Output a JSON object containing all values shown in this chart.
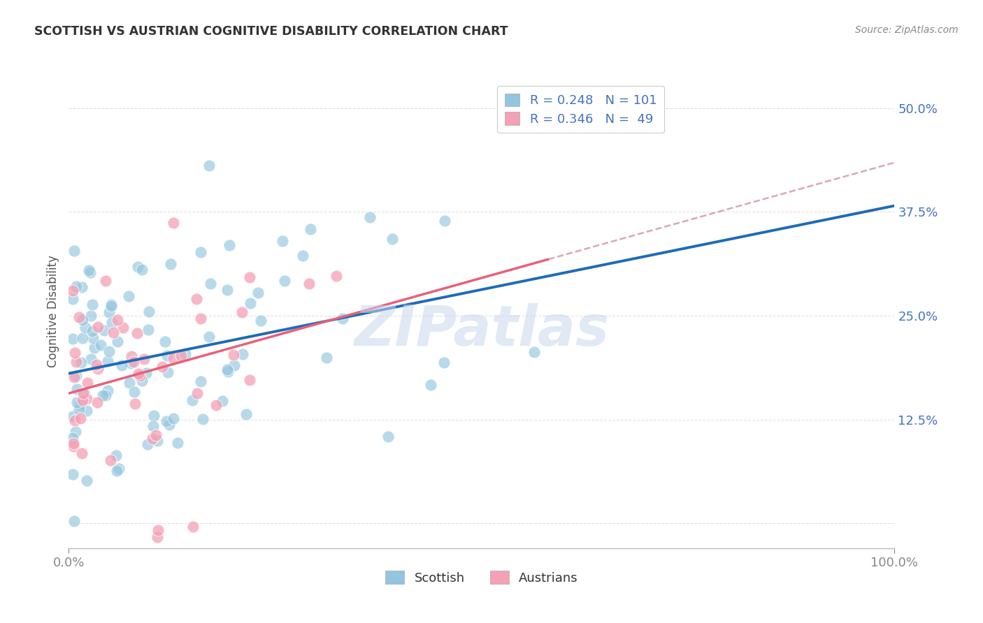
{
  "title": "SCOTTISH VS AUSTRIAN COGNITIVE DISABILITY CORRELATION CHART",
  "source": "Source: ZipAtlas.com",
  "ylabel": "Cognitive Disability",
  "xlim": [
    0.0,
    1.0
  ],
  "ylim": [
    -0.03,
    0.54
  ],
  "scottish_color": "#92c5de",
  "austrian_color": "#f4a0b5",
  "scottish_line_color": "#1e6bb8",
  "austrian_line_color": "#e8607a",
  "dashed_line_color": "#d4a0a8",
  "R_scottish": 0.248,
  "N_scottish": 101,
  "R_austrian": 0.346,
  "N_austrian": 49,
  "background_color": "#ffffff",
  "grid_color": "#e0e0e0",
  "title_color": "#333333",
  "source_color": "#888888",
  "tick_color": "#4472c4",
  "axis_color": "#bbbbbb",
  "watermark_color": "#c8d8ec"
}
